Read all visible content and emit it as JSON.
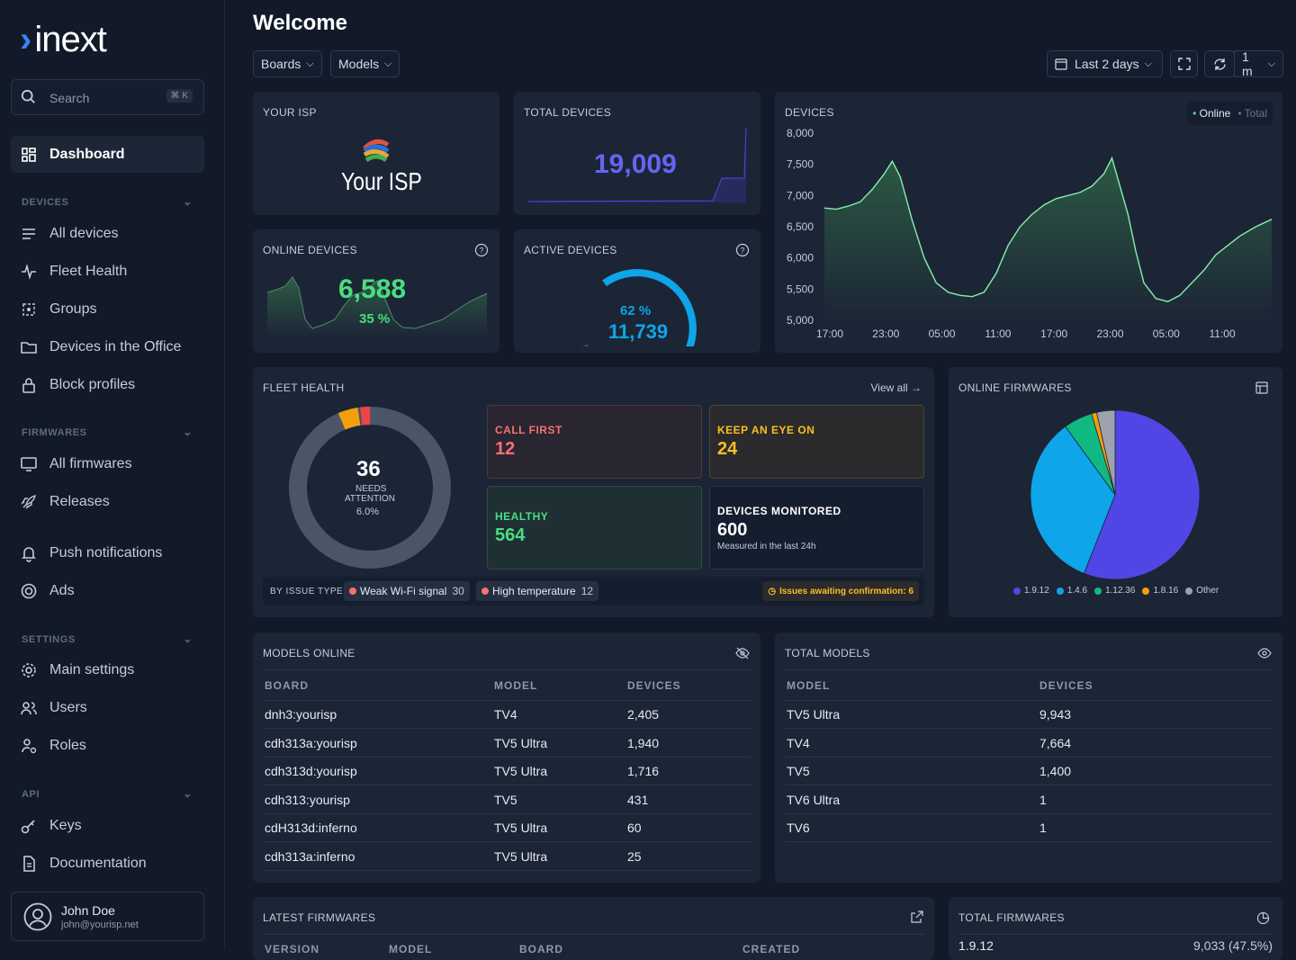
{
  "brand": {
    "name": "inext",
    "chevron": "›"
  },
  "search": {
    "label": "Search",
    "shortcut": "⌘ K"
  },
  "nav": {
    "dashboard": "Dashboard",
    "devices_section": "DEVICES",
    "all_devices": "All devices",
    "fleet_health": "Fleet Health",
    "groups": "Groups",
    "devices_office": "Devices in the Office",
    "block_profiles": "Block profiles",
    "firmwares_section": "FIRMWARES",
    "all_firmwares": "All firmwares",
    "releases": "Releases",
    "push_notifications": "Push notifications",
    "ads": "Ads",
    "settings_section": "SETTINGS",
    "main_settings": "Main settings",
    "users": "Users",
    "roles": "Roles",
    "api_section": "API",
    "keys": "Keys",
    "documentation": "Documentation"
  },
  "user": {
    "name": "John Doe",
    "email": "john@yourisp.net"
  },
  "header": {
    "title": "Welcome",
    "boards": "Boards",
    "models": "Models",
    "range": "Last 2 days",
    "refresh": "1 m"
  },
  "isp": {
    "title": "YOUR ISP",
    "logo_text": "Your ISP"
  },
  "total_devices": {
    "title": "TOTAL DEVICES",
    "value": "19,009"
  },
  "online_devices": {
    "title": "ONLINE DEVICES",
    "value": "6,588",
    "percent": "35 %"
  },
  "active_devices": {
    "title": "ACTIVE DEVICES",
    "percent": "62 %",
    "value": "11,739",
    "fraction": 0.62
  },
  "devices_chart": {
    "title": "DEVICES",
    "legend_online": "Online",
    "legend_total": "Total"
  },
  "chart_data": {
    "type": "area",
    "title": "DEVICES",
    "x": [
      "17:00",
      "23:00",
      "05:00",
      "11:00",
      "17:00",
      "23:00",
      "05:00",
      "11:00"
    ],
    "ylim": [
      5000,
      8000
    ],
    "yticks": [
      "8,000",
      "7,500",
      "7,000",
      "6,500",
      "6,000",
      "5,500",
      "5,000"
    ],
    "series": [
      {
        "name": "Online",
        "points": [
          [
            0,
            6800
          ],
          [
            0.3,
            6780
          ],
          [
            0.6,
            6830
          ],
          [
            0.9,
            6900
          ],
          [
            1.2,
            7100
          ],
          [
            1.5,
            7350
          ],
          [
            1.7,
            7550
          ],
          [
            1.9,
            7300
          ],
          [
            2.2,
            6600
          ],
          [
            2.5,
            6000
          ],
          [
            2.8,
            5600
          ],
          [
            3.1,
            5450
          ],
          [
            3.4,
            5400
          ],
          [
            3.7,
            5380
          ],
          [
            4.0,
            5450
          ],
          [
            4.3,
            5750
          ],
          [
            4.6,
            6200
          ],
          [
            4.9,
            6500
          ],
          [
            5.2,
            6700
          ],
          [
            5.5,
            6850
          ],
          [
            5.8,
            6950
          ],
          [
            6.1,
            7000
          ],
          [
            6.4,
            7050
          ],
          [
            6.7,
            7150
          ],
          [
            7.0,
            7350
          ],
          [
            7.2,
            7600
          ],
          [
            7.4,
            7150
          ],
          [
            7.6,
            6700
          ],
          [
            7.8,
            6100
          ],
          [
            8.0,
            5600
          ],
          [
            8.3,
            5350
          ],
          [
            8.6,
            5300
          ],
          [
            8.9,
            5400
          ],
          [
            9.2,
            5600
          ],
          [
            9.5,
            5800
          ],
          [
            9.8,
            6050
          ],
          [
            10.1,
            6200
          ],
          [
            10.4,
            6350
          ],
          [
            10.8,
            6500
          ],
          [
            11.2,
            6620
          ]
        ]
      }
    ]
  },
  "fleet": {
    "title": "FLEET HEALTH",
    "view_all": "View all",
    "center_value": "36",
    "center_label1": "NEEDS",
    "center_label2": "ATTENTION",
    "center_pct": "6.0%",
    "call_first_label": "CALL FIRST",
    "call_first": "12",
    "eye_label": "KEEP AN EYE ON",
    "eye": "24",
    "healthy_label": "HEALTHY",
    "healthy": "564",
    "monitored_label": "DEVICES MONITORED",
    "monitored": "600",
    "monitored_sub": "Measured in the last 24h",
    "by_issue": "BY ISSUE TYPE",
    "issue1": "Weak Wi-Fi signal",
    "issue1_n": "30",
    "issue2": "High temperature",
    "issue2_n": "12",
    "awaiting": "Issues awaiting confirmation: 6"
  },
  "firmwares_pie": {
    "title": "ONLINE FIRMWARES",
    "legend": [
      "1.9.12",
      "1.4.6",
      "1.12.36",
      "1.8.16",
      "Other"
    ],
    "colors": [
      "#4f46e5",
      "#0ea5e9",
      "#10b981",
      "#f59e0b",
      "#9ca3af"
    ],
    "fractions": [
      0.56,
      0.34,
      0.055,
      0.01,
      0.035
    ]
  },
  "models_online": {
    "title": "MODELS ONLINE",
    "headers": [
      "BOARD",
      "MODEL",
      "DEVICES"
    ],
    "rows": [
      [
        "dnh3:yourisp",
        "TV4",
        "2,405"
      ],
      [
        "cdh313a:yourisp",
        "TV5 Ultra",
        "1,940"
      ],
      [
        "cdh313d:yourisp",
        "TV5 Ultra",
        "1,716"
      ],
      [
        "cdh313:yourisp",
        "TV5",
        "431"
      ],
      [
        "cdH313d:inferno",
        "TV5 Ultra",
        "60"
      ],
      [
        "cdh313a:inferno",
        "TV5 Ultra",
        "25"
      ]
    ]
  },
  "total_models": {
    "title": "TOTAL MODELS",
    "headers": [
      "MODEL",
      "DEVICES"
    ],
    "rows": [
      [
        "TV5 Ultra",
        "9,943"
      ],
      [
        "TV4",
        "7,664"
      ],
      [
        "TV5",
        "1,400"
      ],
      [
        "TV6 Ultra",
        "1"
      ],
      [
        "TV6",
        "1"
      ]
    ]
  },
  "latest_firmwares": {
    "title": "LATEST FIRMWARES",
    "headers": [
      "VERSION",
      "MODEL",
      "BOARD",
      "CREATED"
    ]
  },
  "total_firmwares": {
    "title": "TOTAL FIRMWARES",
    "first_version": "1.9.12",
    "first_value": "9,033 (47.5%)"
  }
}
